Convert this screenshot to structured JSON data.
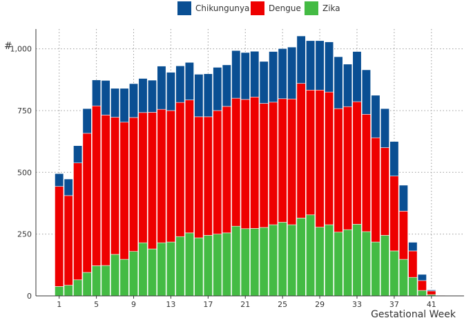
{
  "chart_data": {
    "type": "bar",
    "stacked": true,
    "title": "",
    "xlabel": "Gestational Week",
    "ylabel": "#",
    "ylim": [
      0,
      1080
    ],
    "xlim": [
      -1.5,
      44.5
    ],
    "yticks": [
      0,
      250,
      500,
      750,
      1000
    ],
    "ytick_labels": [
      "0",
      "250",
      "500",
      "750",
      "1,000"
    ],
    "xticks": [
      1,
      5,
      9,
      13,
      17,
      21,
      25,
      29,
      33,
      37,
      41
    ],
    "grid": true,
    "legend_position": "top",
    "categories": [
      1,
      2,
      3,
      4,
      5,
      6,
      7,
      8,
      9,
      10,
      11,
      12,
      13,
      14,
      15,
      16,
      17,
      18,
      19,
      20,
      21,
      22,
      23,
      24,
      25,
      26,
      27,
      28,
      29,
      30,
      31,
      32,
      33,
      34,
      35,
      36,
      37,
      38,
      39,
      40,
      41,
      42
    ],
    "series": [
      {
        "name": "Zika",
        "color": "#44bb44",
        "values": [
          38,
          43,
          65,
          95,
          122,
          123,
          168,
          148,
          180,
          215,
          190,
          215,
          218,
          240,
          255,
          235,
          245,
          250,
          255,
          282,
          272,
          273,
          277,
          288,
          298,
          288,
          315,
          328,
          278,
          288,
          258,
          268,
          290,
          260,
          218,
          245,
          182,
          148,
          75,
          22,
          5,
          1
        ]
      },
      {
        "name": "Dengue",
        "color": "#ee0000",
        "values": [
          405,
          363,
          473,
          563,
          647,
          609,
          555,
          555,
          542,
          527,
          553,
          540,
          532,
          543,
          538,
          490,
          480,
          500,
          512,
          518,
          523,
          532,
          502,
          496,
          500,
          509,
          545,
          505,
          555,
          537,
          500,
          498,
          496,
          475,
          422,
          355,
          303,
          195,
          107,
          40,
          15,
          2
        ]
      },
      {
        "name": "Chikungunya",
        "color": "#0a4f93",
        "values": [
          52,
          67,
          70,
          100,
          105,
          140,
          117,
          137,
          137,
          138,
          130,
          175,
          155,
          148,
          152,
          172,
          174,
          175,
          168,
          193,
          190,
          185,
          170,
          205,
          203,
          210,
          192,
          200,
          200,
          203,
          210,
          172,
          203,
          180,
          172,
          158,
          140,
          105,
          35,
          25,
          4,
          1
        ]
      }
    ],
    "legend_order": [
      "Chikungunya",
      "Dengue",
      "Zika"
    ]
  }
}
